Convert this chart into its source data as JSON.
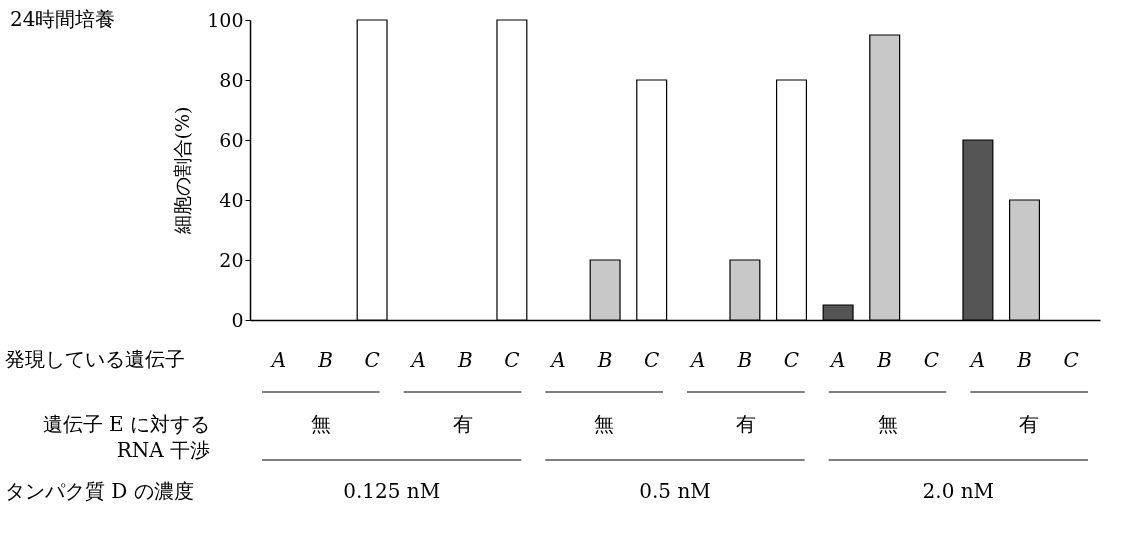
{
  "chart_data": {
    "type": "bar",
    "title": "24時間培養",
    "ylabel": "細胞の割合(%)",
    "categories": [
      "A",
      "B",
      "C",
      "A",
      "B",
      "C",
      "A",
      "B",
      "C",
      "A",
      "B",
      "C",
      "A",
      "B",
      "C",
      "A",
      "B",
      "C"
    ],
    "values": [
      0,
      0,
      100,
      0,
      0,
      100,
      0,
      20,
      80,
      0,
      20,
      80,
      5,
      95,
      0,
      60,
      40,
      0
    ],
    "colors": [
      "#555555",
      "#c8c8c8",
      "#ffffff",
      "#555555",
      "#c8c8c8",
      "#ffffff",
      "#555555",
      "#c8c8c8",
      "#ffffff",
      "#555555",
      "#c8c8c8",
      "#ffffff",
      "#555555",
      "#c8c8c8",
      "#ffffff",
      "#555555",
      "#c8c8c8",
      "#ffffff"
    ],
    "ylim": [
      0,
      100
    ],
    "yticks": [
      0,
      20,
      40,
      60,
      80,
      100
    ],
    "grid": false,
    "annotations": [
      "発現している遺伝子",
      "遺伝子 E に対する\nRNA 干渉",
      "無",
      "有",
      "無",
      "有",
      "無",
      "有",
      "タンパク質 D の濃度",
      "0.125 nM",
      "0.5 nM",
      "2.0 nM"
    ]
  }
}
